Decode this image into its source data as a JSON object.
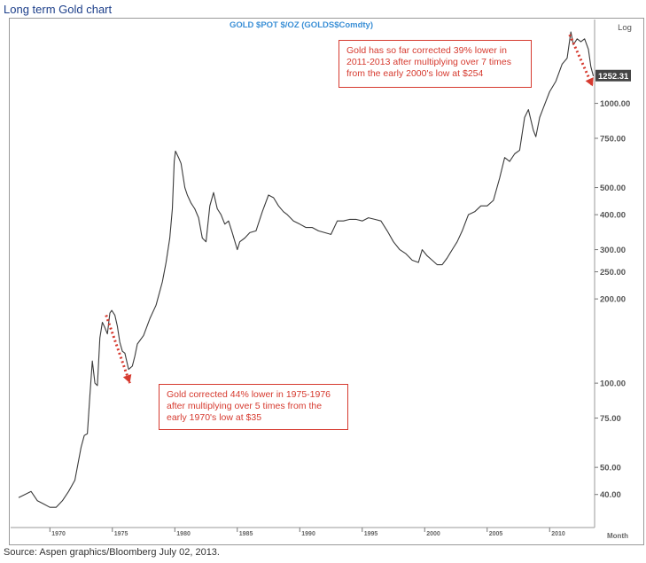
{
  "page_title": "Long term Gold chart",
  "source": "Source: Aspen graphics/Bloomberg July 02, 2013.",
  "chart_data": {
    "type": "line",
    "title": "GOLD  $POT  $/OZ  (GOLDS$Comdty)",
    "scale_label": "Log",
    "x_unit_label": "Month",
    "y_scale": "log",
    "ylim": [
      34,
      1800
    ],
    "xlim": [
      1967.0,
      2013.6
    ],
    "grid": false,
    "colors": {
      "line": "#3a3a3a",
      "annotation": "#d63a2f",
      "title": "#3a8fd6"
    },
    "x_ticks": [
      "1970",
      "1975",
      "1980",
      "1985",
      "1990",
      "1995",
      "2000",
      "2005",
      "2010"
    ],
    "y_ticks": [
      "1000.00",
      "750.00",
      "500.00",
      "400.00",
      "300.00",
      "250.00",
      "200.00",
      "100.00",
      "75.00",
      "50.00",
      "40.00"
    ],
    "last_price_label": "1252.31",
    "series": [
      {
        "x": [
          1967.5,
          1968.0,
          1968.5,
          1969.0,
          1969.5,
          1970.0,
          1970.5,
          1971.0,
          1971.5,
          1972.0,
          1972.5,
          1972.75,
          1973.0,
          1973.2,
          1973.4,
          1973.6,
          1973.8,
          1974.0,
          1974.2,
          1974.4,
          1974.6,
          1974.8,
          1974.95,
          1975.2,
          1975.4,
          1975.6,
          1975.8,
          1976.0,
          1976.3,
          1976.6,
          1976.8,
          1977.0,
          1977.5,
          1978.0,
          1978.5,
          1979.0,
          1979.3,
          1979.6,
          1979.8,
          1979.95,
          1980.05,
          1980.3,
          1980.5,
          1980.8,
          1981.0,
          1981.3,
          1981.6,
          1981.9,
          1982.2,
          1982.5,
          1982.8,
          1983.1,
          1983.4,
          1983.7,
          1984.0,
          1984.3,
          1984.6,
          1985.0,
          1985.2,
          1985.6,
          1986.0,
          1986.5,
          1987.0,
          1987.5,
          1987.9,
          1988.3,
          1988.7,
          1989.0,
          1989.5,
          1990.0,
          1990.5,
          1991.0,
          1991.5,
          1992.0,
          1992.5,
          1993.0,
          1993.5,
          1994.0,
          1994.5,
          1995.0,
          1995.5,
          1996.0,
          1996.5,
          1997.0,
          1997.5,
          1998.0,
          1998.5,
          1999.0,
          1999.5,
          1999.8,
          2000.2,
          2000.6,
          2001.0,
          2001.4,
          2001.8,
          2002.2,
          2002.6,
          2003.0,
          2003.5,
          2004.0,
          2004.5,
          2005.0,
          2005.5,
          2006.0,
          2006.4,
          2006.8,
          2007.2,
          2007.6,
          2008.0,
          2008.3,
          2008.7,
          2008.9,
          2009.2,
          2009.6,
          2010.0,
          2010.5,
          2011.0,
          2011.4,
          2011.7,
          2011.9,
          2012.2,
          2012.5,
          2012.8,
          2013.1,
          2013.3,
          2013.5
        ],
        "y": [
          39,
          40,
          41,
          38,
          37,
          36,
          36,
          38,
          41,
          45,
          59,
          65,
          66,
          90,
          120,
          100,
          98,
          145,
          165,
          158,
          150,
          178,
          182,
          175,
          160,
          140,
          130,
          128,
          112,
          115,
          125,
          138,
          148,
          170,
          190,
          230,
          270,
          330,
          420,
          620,
          675,
          640,
          610,
          500,
          470,
          440,
          420,
          390,
          330,
          320,
          430,
          480,
          420,
          400,
          370,
          380,
          345,
          300,
          320,
          330,
          345,
          350,
          410,
          470,
          460,
          430,
          410,
          400,
          380,
          370,
          360,
          360,
          350,
          345,
          340,
          380,
          380,
          385,
          385,
          380,
          390,
          385,
          380,
          350,
          320,
          300,
          290,
          275,
          270,
          300,
          285,
          275,
          265,
          265,
          280,
          300,
          320,
          350,
          400,
          410,
          430,
          430,
          450,
          540,
          640,
          620,
          660,
          680,
          890,
          950,
          800,
          760,
          890,
          990,
          1100,
          1200,
          1380,
          1450,
          1800,
          1620,
          1700,
          1660,
          1700,
          1560,
          1350,
          1252
        ]
      }
    ]
  },
  "annotations": {
    "top": "Gold has so far corrected 39% lower in\n2011-2013 after multiplying over 7 times\nfrom the early 2000's low at $254",
    "bottom": "Gold corrected 44% lower in 1975-1976\nafter multiplying over 5 times from the\nearly 1970's low at $35"
  }
}
